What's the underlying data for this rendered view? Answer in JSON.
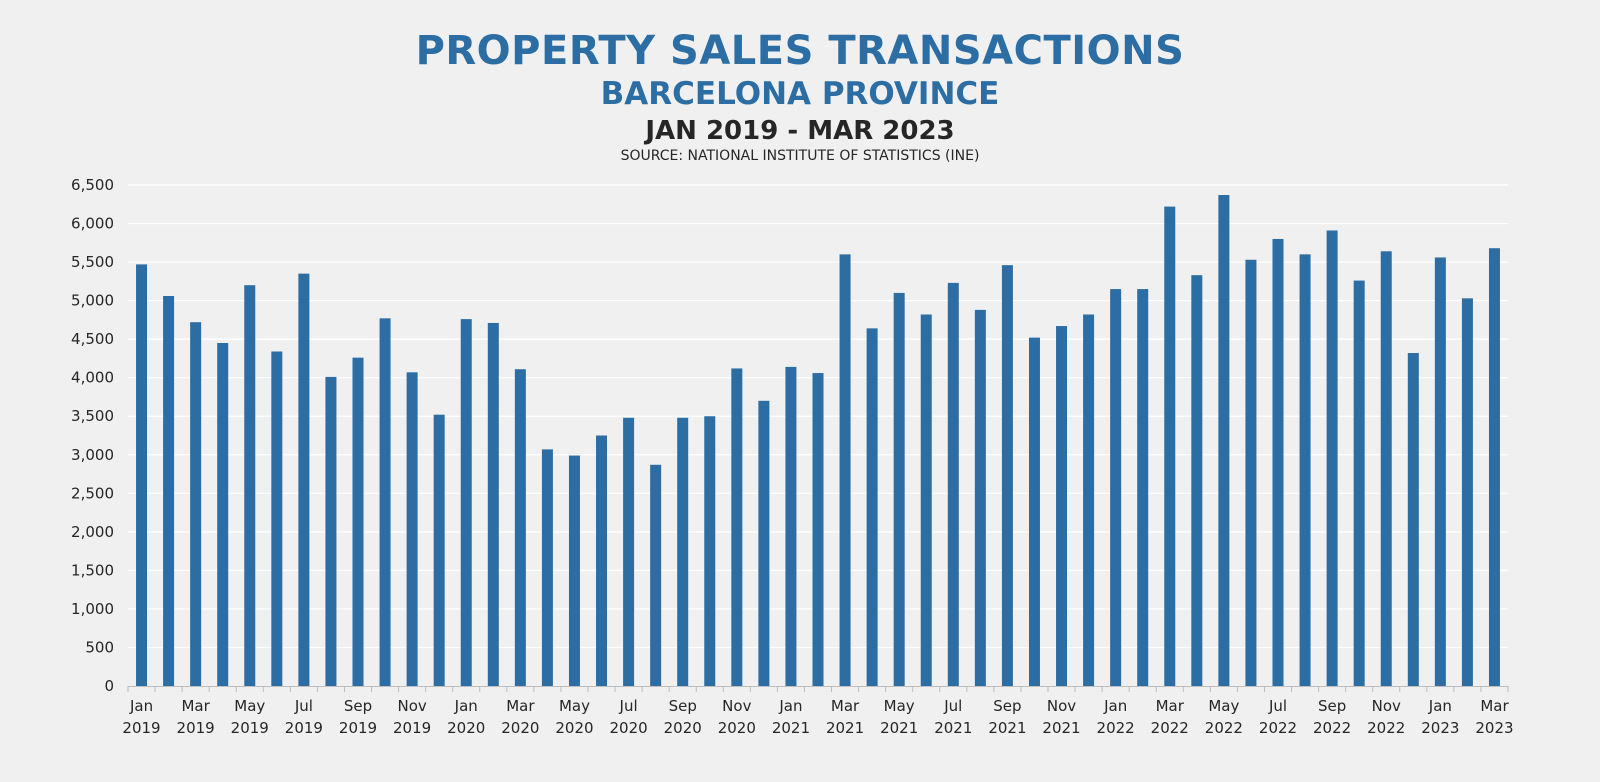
{
  "chart_data": {
    "type": "bar",
    "title": "PROPERTY SALES TRANSACTIONS",
    "subtitle": "BARCELONA PROVINCE",
    "period": "JAN 2019 - MAR 2023",
    "source": "SOURCE: NATIONAL INSTITUTE OF STATISTICS (INE)",
    "ylim": [
      0,
      6500
    ],
    "yticks": [
      "0",
      "500",
      "1,000",
      "1,500",
      "2,000",
      "2,500",
      "3,000",
      "3,500",
      "4,000",
      "4,500",
      "5,000",
      "5,500",
      "6,000",
      "6,500"
    ],
    "ytick_values": [
      0,
      500,
      1000,
      1500,
      2000,
      2500,
      3000,
      3500,
      4000,
      4500,
      5000,
      5500,
      6000,
      6500
    ],
    "grid": true,
    "bar_color": "#2c6ea4",
    "categories": [
      "Jan 2019",
      "Feb 2019",
      "Mar 2019",
      "Apr 2019",
      "May 2019",
      "Jun 2019",
      "Jul 2019",
      "Aug 2019",
      "Sep 2019",
      "Oct 2019",
      "Nov 2019",
      "Dec 2019",
      "Jan 2020",
      "Feb 2020",
      "Mar 2020",
      "Apr 2020",
      "May 2020",
      "Jun 2020",
      "Jul 2020",
      "Aug 2020",
      "Sep 2020",
      "Oct 2020",
      "Nov 2020",
      "Dec 2020",
      "Jan 2021",
      "Feb 2021",
      "Mar 2021",
      "Apr 2021",
      "May 2021",
      "Jun 2021",
      "Jul 2021",
      "Aug 2021",
      "Sep 2021",
      "Oct 2021",
      "Nov 2021",
      "Dec 2021",
      "Jan 2022",
      "Feb 2022",
      "Mar 2022",
      "Apr 2022",
      "May 2022",
      "Jun 2022",
      "Jul 2022",
      "Aug 2022",
      "Sep 2022",
      "Oct 2022",
      "Nov 2022",
      "Dec 2022",
      "Jan 2023",
      "Feb 2023",
      "Mar 2023"
    ],
    "values": [
      5470,
      5060,
      4720,
      4450,
      5200,
      4340,
      5350,
      4010,
      4260,
      4770,
      4070,
      3520,
      4760,
      4710,
      4110,
      3070,
      2990,
      3250,
      3480,
      2870,
      3480,
      3500,
      4120,
      3700,
      4140,
      4060,
      5600,
      4640,
      5100,
      4820,
      5230,
      4880,
      5460,
      4520,
      4670,
      4820,
      5150,
      5150,
      6220,
      5330,
      6370,
      5530,
      5800,
      5600,
      5910,
      5260,
      5640,
      4320,
      5560,
      5030,
      5680
    ],
    "xtick_labels": [
      {
        "month": "Jan",
        "year": "2019"
      },
      {
        "month": "",
        "year": ""
      },
      {
        "month": "Mar",
        "year": "2019"
      },
      {
        "month": "",
        "year": ""
      },
      {
        "month": "May",
        "year": "2019"
      },
      {
        "month": "",
        "year": ""
      },
      {
        "month": "Jul",
        "year": "2019"
      },
      {
        "month": "",
        "year": ""
      },
      {
        "month": "Sep",
        "year": "2019"
      },
      {
        "month": "",
        "year": ""
      },
      {
        "month": "Nov",
        "year": "2019"
      },
      {
        "month": "",
        "year": ""
      },
      {
        "month": "Jan",
        "year": "2020"
      },
      {
        "month": "",
        "year": ""
      },
      {
        "month": "Mar",
        "year": "2020"
      },
      {
        "month": "",
        "year": ""
      },
      {
        "month": "May",
        "year": "2020"
      },
      {
        "month": "",
        "year": ""
      },
      {
        "month": "Jul",
        "year": "2020"
      },
      {
        "month": "",
        "year": ""
      },
      {
        "month": "Sep",
        "year": "2020"
      },
      {
        "month": "",
        "year": ""
      },
      {
        "month": "Nov",
        "year": "2020"
      },
      {
        "month": "",
        "year": ""
      },
      {
        "month": "Jan",
        "year": "2021"
      },
      {
        "month": "",
        "year": ""
      },
      {
        "month": "Mar",
        "year": "2021"
      },
      {
        "month": "",
        "year": ""
      },
      {
        "month": "May",
        "year": "2021"
      },
      {
        "month": "",
        "year": ""
      },
      {
        "month": "Jul",
        "year": "2021"
      },
      {
        "month": "",
        "year": ""
      },
      {
        "month": "Sep",
        "year": "2021"
      },
      {
        "month": "",
        "year": ""
      },
      {
        "month": "Nov",
        "year": "2021"
      },
      {
        "month": "",
        "year": ""
      },
      {
        "month": "Jan",
        "year": "2022"
      },
      {
        "month": "",
        "year": ""
      },
      {
        "month": "Mar",
        "year": "2022"
      },
      {
        "month": "",
        "year": ""
      },
      {
        "month": "May",
        "year": "2022"
      },
      {
        "month": "",
        "year": ""
      },
      {
        "month": "Jul",
        "year": "2022"
      },
      {
        "month": "",
        "year": ""
      },
      {
        "month": "Sep",
        "year": "2022"
      },
      {
        "month": "",
        "year": ""
      },
      {
        "month": "Nov",
        "year": "2022"
      },
      {
        "month": "",
        "year": ""
      },
      {
        "month": "Jan",
        "year": "2023"
      },
      {
        "month": "",
        "year": ""
      },
      {
        "month": "Mar",
        "year": "2023"
      }
    ]
  }
}
